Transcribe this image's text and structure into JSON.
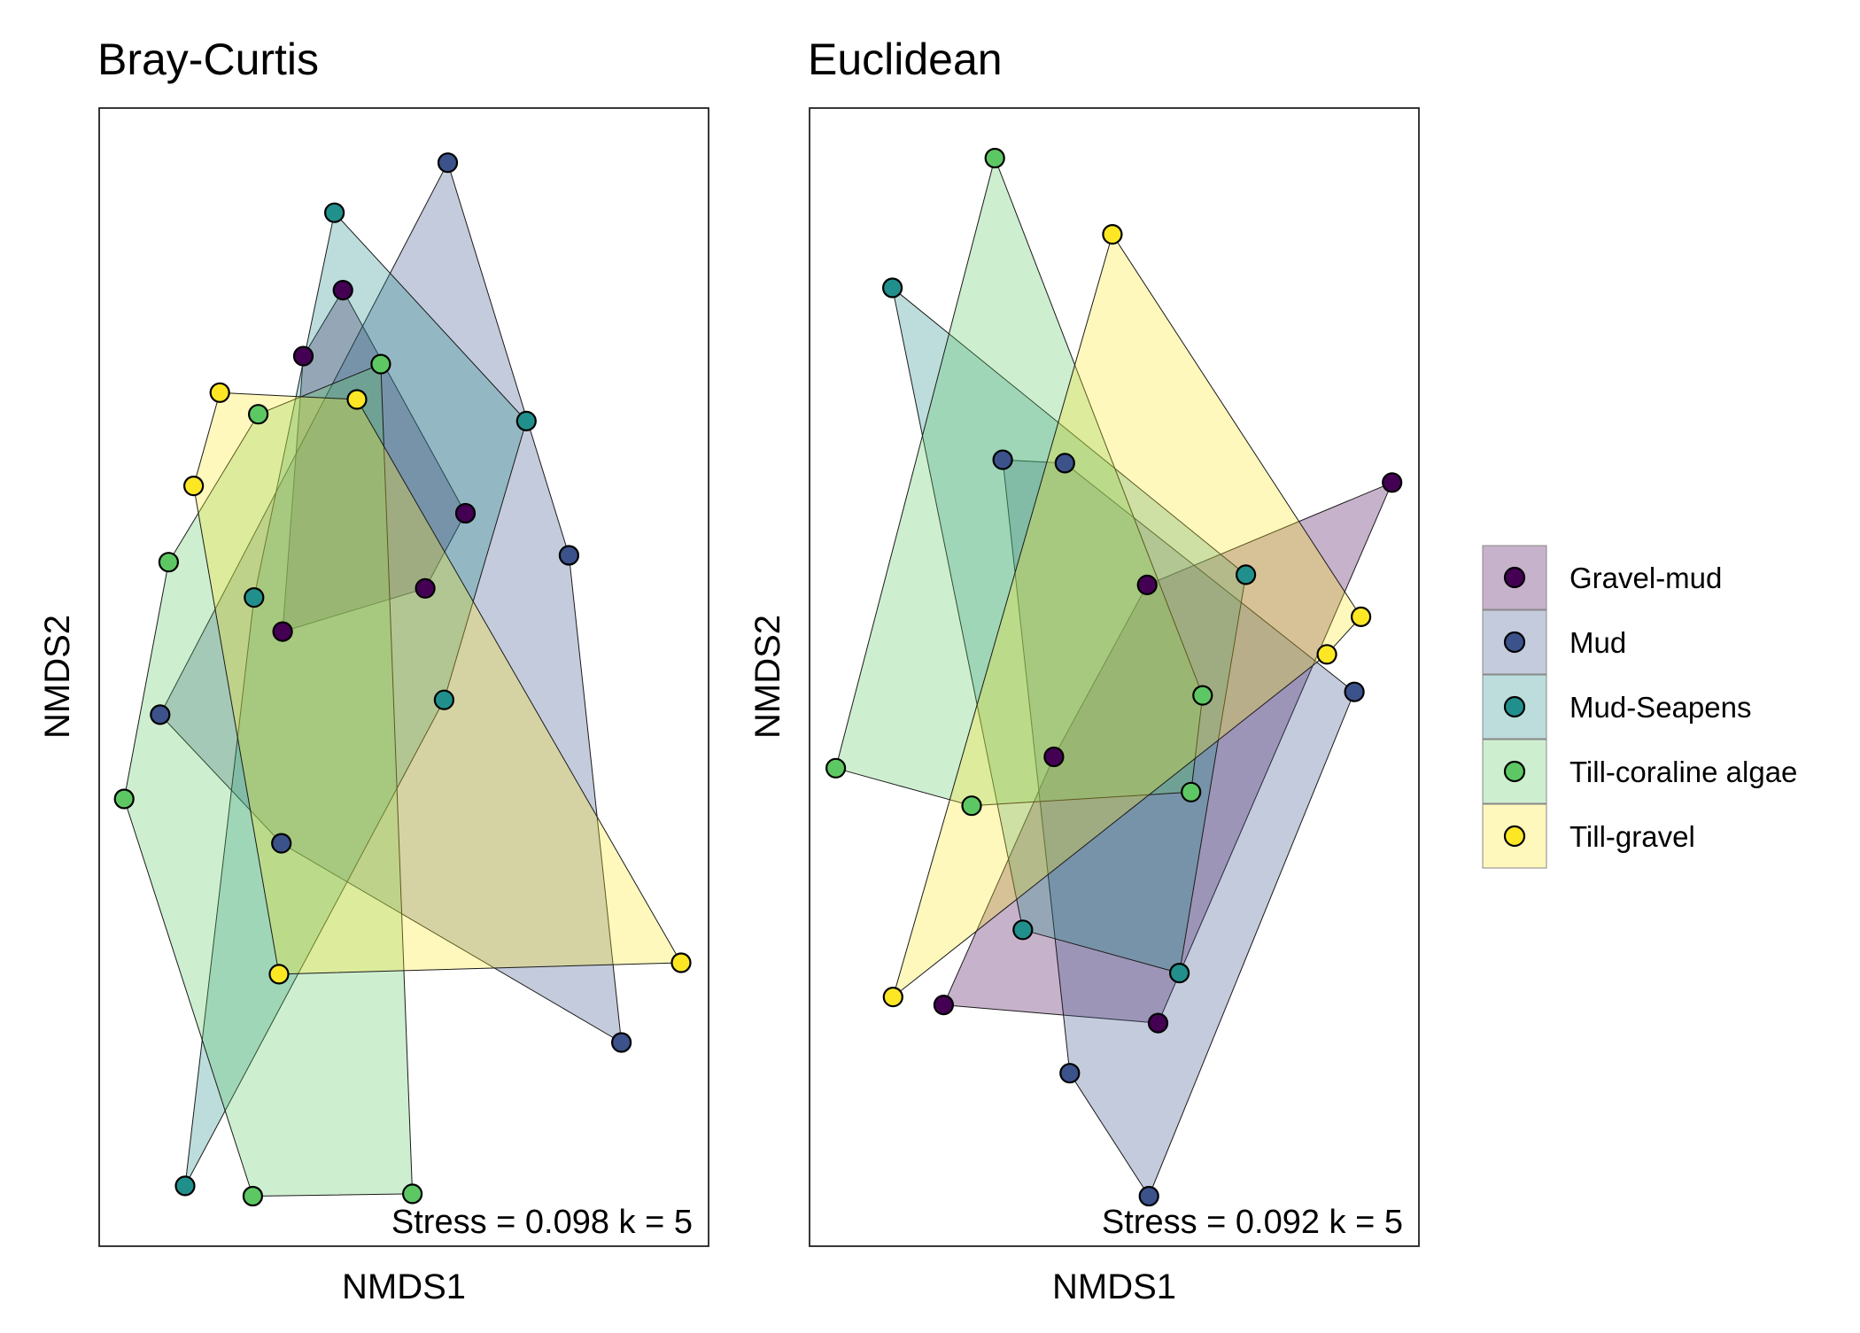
{
  "legend": {
    "entries": [
      {
        "label": "Gravel-mud",
        "color": "#440154"
      },
      {
        "label": "Mud",
        "color": "#3B528B"
      },
      {
        "label": "Mud-Seapens",
        "color": "#21908C"
      },
      {
        "label": "Till-coraline algae",
        "color": "#5DC863"
      },
      {
        "label": "Till-gravel",
        "color": "#FDE725"
      }
    ]
  },
  "chart_data": [
    {
      "type": "scatter",
      "title": "Bray-Curtis",
      "xlabel": "NMDS1",
      "ylabel": "NMDS2",
      "annotation": "Stress = 0.098 k = 5",
      "xlim": [
        0,
        100
      ],
      "ylim": [
        0,
        100
      ],
      "grid": false,
      "legend": "right",
      "hulls": true,
      "series": [
        {
          "name": "Gravel-mud",
          "points": [
            [
              40.0,
              84.0
            ],
            [
              33.5,
              78.2
            ],
            [
              30.1,
              54.0
            ],
            [
              53.5,
              57.8
            ],
            [
              60.1,
              64.4
            ]
          ]
        },
        {
          "name": "Mud",
          "points": [
            [
              57.2,
              95.2
            ],
            [
              77.1,
              60.7
            ],
            [
              29.9,
              35.4
            ],
            [
              10.0,
              46.7
            ],
            [
              85.7,
              17.9
            ]
          ]
        },
        {
          "name": "Mud-Seapens",
          "points": [
            [
              38.6,
              90.8
            ],
            [
              70.1,
              72.5
            ],
            [
              25.4,
              57.0
            ],
            [
              56.6,
              48.0
            ],
            [
              14.1,
              5.3
            ]
          ]
        },
        {
          "name": "Till-coraline algae",
          "points": [
            [
              46.2,
              77.5
            ],
            [
              26.1,
              73.1
            ],
            [
              11.4,
              60.1
            ],
            [
              4.1,
              39.3
            ],
            [
              25.2,
              4.4
            ],
            [
              51.4,
              4.6
            ]
          ]
        },
        {
          "name": "Till-gravel",
          "points": [
            [
              19.8,
              75.0
            ],
            [
              42.3,
              74.4
            ],
            [
              15.5,
              66.8
            ],
            [
              29.5,
              23.9
            ],
            [
              95.5,
              24.9
            ]
          ]
        }
      ]
    },
    {
      "type": "scatter",
      "title": "Euclidean",
      "xlabel": "NMDS1",
      "ylabel": "NMDS2",
      "annotation": "Stress = 0.092 k = 5",
      "xlim": [
        0,
        100
      ],
      "ylim": [
        0,
        100
      ],
      "grid": false,
      "legend": "right",
      "hulls": true,
      "series": [
        {
          "name": "Gravel-mud",
          "points": [
            [
              95.6,
              67.1
            ],
            [
              55.4,
              58.1
            ],
            [
              40.1,
              43.0
            ],
            [
              22.0,
              21.2
            ],
            [
              57.2,
              19.6
            ]
          ]
        },
        {
          "name": "Mud",
          "points": [
            [
              31.7,
              69.1
            ],
            [
              41.9,
              68.8
            ],
            [
              89.4,
              48.7
            ],
            [
              42.7,
              15.2
            ],
            [
              55.7,
              4.4
            ]
          ]
        },
        {
          "name": "Mud-Seapens",
          "points": [
            [
              13.6,
              84.2
            ],
            [
              71.6,
              59.0
            ],
            [
              35.0,
              27.8
            ],
            [
              60.7,
              24.0
            ]
          ]
        },
        {
          "name": "Till-coraline algae",
          "points": [
            [
              30.4,
              95.6
            ],
            [
              64.5,
              48.4
            ],
            [
              26.6,
              38.7
            ],
            [
              62.6,
              39.9
            ],
            [
              4.3,
              42.0
            ]
          ]
        },
        {
          "name": "Till-gravel",
          "points": [
            [
              49.7,
              88.9
            ],
            [
              90.5,
              55.3
            ],
            [
              84.9,
              52.0
            ],
            [
              13.7,
              21.9
            ]
          ]
        }
      ]
    }
  ]
}
